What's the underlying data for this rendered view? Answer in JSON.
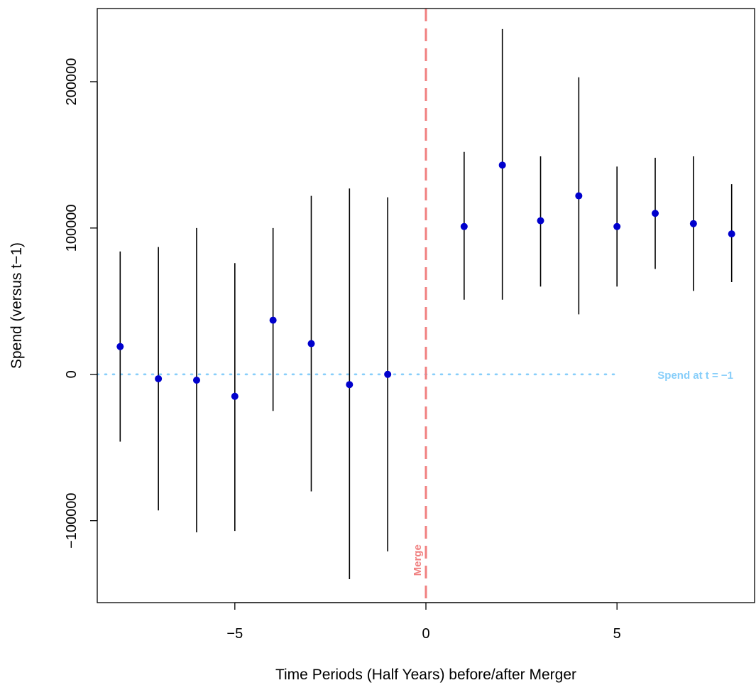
{
  "chart_data": {
    "type": "scatter",
    "title": "",
    "xlabel": "Time Periods (Half Years) before/after Merger",
    "ylabel": "Spend (versus t−1)",
    "xlim": [
      -8.6,
      8.6
    ],
    "ylim": [
      -156000,
      250000
    ],
    "xticks": [
      -5,
      0,
      5
    ],
    "xtick_labels": [
      "−5",
      "0",
      "5"
    ],
    "yticks": [
      -100000,
      0,
      100000,
      200000
    ],
    "ytick_labels": [
      "−100000",
      "0",
      "100000",
      "200000"
    ],
    "grid": false,
    "series": [
      {
        "type": "point_with_interval",
        "points": [
          {
            "x": -8,
            "y": 19000,
            "lo": -46000,
            "hi": 84000
          },
          {
            "x": -7,
            "y": -3000,
            "lo": -93000,
            "hi": 87000
          },
          {
            "x": -6,
            "y": -4000,
            "lo": -108000,
            "hi": 100000
          },
          {
            "x": -5,
            "y": -15000,
            "lo": -107000,
            "hi": 76000
          },
          {
            "x": -4,
            "y": 37000,
            "lo": -25000,
            "hi": 100000
          },
          {
            "x": -3,
            "y": 21000,
            "lo": -80000,
            "hi": 122000
          },
          {
            "x": -2,
            "y": -7000,
            "lo": -140000,
            "hi": 127000
          },
          {
            "x": -1,
            "y": 0,
            "lo": -121000,
            "hi": 121000
          },
          {
            "x": 1,
            "y": 101000,
            "lo": 51000,
            "hi": 152000
          },
          {
            "x": 2,
            "y": 143000,
            "lo": 51000,
            "hi": 236000
          },
          {
            "x": 3,
            "y": 105000,
            "lo": 60000,
            "hi": 149000
          },
          {
            "x": 4,
            "y": 122000,
            "lo": 41000,
            "hi": 203000
          },
          {
            "x": 5,
            "y": 101000,
            "lo": 60000,
            "hi": 142000
          },
          {
            "x": 6,
            "y": 110000,
            "lo": 72000,
            "hi": 148000
          },
          {
            "x": 7,
            "y": 103000,
            "lo": 57000,
            "hi": 149000
          },
          {
            "x": 8,
            "y": 96000,
            "lo": 63000,
            "hi": 130000
          }
        ]
      }
    ],
    "reference_lines": {
      "horizontal": {
        "y": 0,
        "label": "Spend at t = −1",
        "color": "#87CEFA",
        "style": "dotted"
      },
      "vertical": {
        "x": 0,
        "label": "Merge",
        "color": "#F08080",
        "style": "dashed"
      }
    },
    "colors": {
      "point": "#0000CD",
      "interval": "#000000",
      "axis": "#000000"
    }
  }
}
